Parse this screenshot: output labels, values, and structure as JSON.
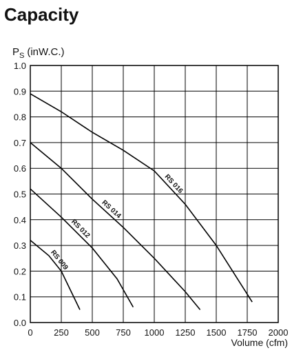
{
  "chart_data": {
    "type": "line",
    "title": "Capacity",
    "ylabel": {
      "symbol": "P",
      "subscript": "S",
      "unit": "(inW.C.)"
    },
    "xlabel": "Volume (cfm)",
    "xlim": [
      0,
      2000
    ],
    "xticks": [
      0,
      250,
      500,
      750,
      1000,
      1250,
      1500,
      1750,
      2000
    ],
    "ylim": [
      0,
      1
    ],
    "yticks": [
      {
        "value": 0,
        "label": "0.0"
      },
      0.1,
      0.2,
      0.3,
      0.4,
      0.5,
      0.6,
      0.7,
      0.8,
      0.9,
      {
        "value": 1,
        "label": "1.0"
      }
    ],
    "grid": true,
    "series": [
      {
        "name": "RS 016",
        "color": "#000000",
        "x": [
          0,
          250,
          500,
          750,
          1000,
          1250,
          1500,
          1790
        ],
        "values": [
          0.89,
          0.82,
          0.74,
          0.67,
          0.59,
          0.46,
          0.3,
          0.08
        ]
      },
      {
        "name": "RS 014",
        "color": "#000000",
        "x": [
          0,
          250,
          500,
          750,
          1000,
          1250,
          1370
        ],
        "values": [
          0.7,
          0.6,
          0.48,
          0.37,
          0.25,
          0.12,
          0.05
        ]
      },
      {
        "name": "RS 012",
        "color": "#000000",
        "x": [
          0,
          250,
          500,
          700,
          830
        ],
        "values": [
          0.52,
          0.41,
          0.29,
          0.17,
          0.06
        ]
      },
      {
        "name": "RS 009",
        "color": "#000000",
        "x": [
          0,
          150,
          250,
          330,
          400
        ],
        "values": [
          0.32,
          0.26,
          0.2,
          0.12,
          0.05
        ]
      }
    ]
  }
}
